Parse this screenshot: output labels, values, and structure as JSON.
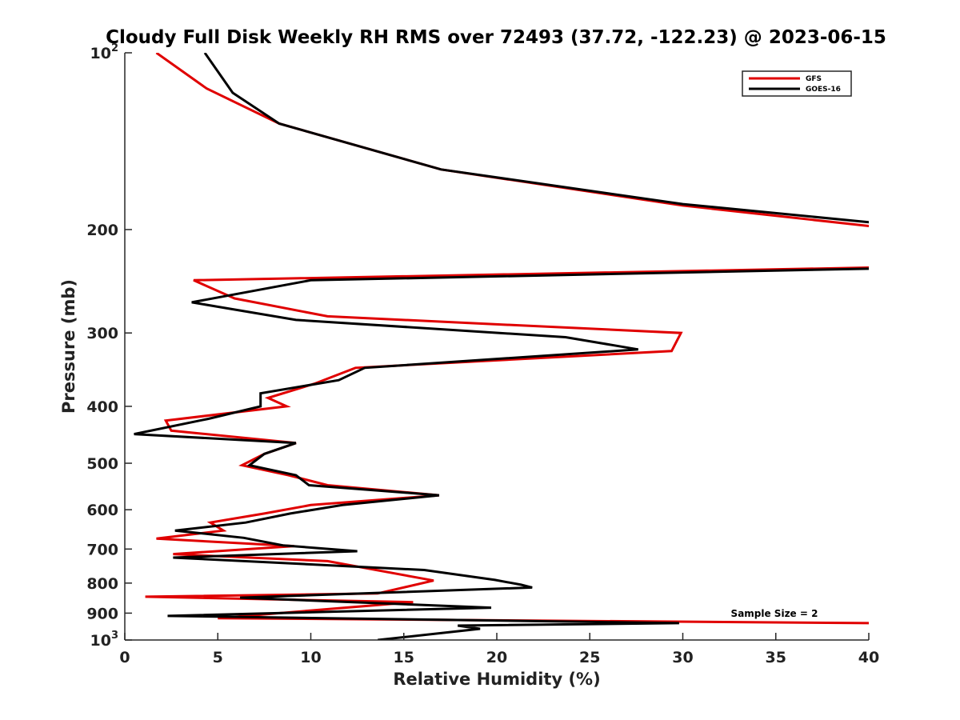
{
  "chart_data": {
    "type": "line",
    "title": "Cloudy Full Disk Weekly RH RMS over 72493 (37.72, -122.23) @ 2023-06-15",
    "xlabel": "Relative Humidity (%)",
    "ylabel": "Pressure (mb)",
    "xlim": [
      0,
      40
    ],
    "ylim": [
      1000,
      100
    ],
    "yscale": "log",
    "y_reversed": true,
    "grid": false,
    "legend_position": "top-right",
    "x_ticks": [
      0,
      5,
      10,
      15,
      20,
      25,
      30,
      35,
      40
    ],
    "y_ticks": [
      {
        "value": 100,
        "base": "10",
        "exp": "2"
      },
      {
        "value": 200,
        "label": "200"
      },
      {
        "value": 300,
        "label": "300"
      },
      {
        "value": 400,
        "label": "400"
      },
      {
        "value": 500,
        "label": "500"
      },
      {
        "value": 600,
        "label": "600"
      },
      {
        "value": 700,
        "label": "700"
      },
      {
        "value": 800,
        "label": "800"
      },
      {
        "value": 900,
        "label": "900"
      },
      {
        "value": 1000,
        "base": "10",
        "exp": "3"
      }
    ],
    "annotation": "Sample Size = 2",
    "series": [
      {
        "name": "GFS",
        "color": "#e00000",
        "points": [
          [
            1.7,
            100
          ],
          [
            4.4,
            115
          ],
          [
            8.3,
            132
          ],
          [
            17.0,
            158
          ],
          [
            30.0,
            182
          ],
          [
            40.5,
            198
          ],
          [
            40.5,
            232
          ],
          [
            3.7,
            244
          ],
          [
            5.9,
            262
          ],
          [
            10.9,
            281
          ],
          [
            29.9,
            300
          ],
          [
            29.4,
            322
          ],
          [
            12.4,
            344
          ],
          [
            10.2,
            366
          ],
          [
            7.7,
            387
          ],
          [
            8.7,
            400
          ],
          [
            2.2,
            423
          ],
          [
            2.5,
            440
          ],
          [
            9.2,
            462
          ],
          [
            7.5,
            482
          ],
          [
            6.3,
            504
          ],
          [
            8.8,
            524
          ],
          [
            10.9,
            545
          ],
          [
            16.9,
            567
          ],
          [
            10.0,
            589
          ],
          [
            7.5,
            609
          ],
          [
            4.6,
            631
          ],
          [
            5.3,
            651
          ],
          [
            1.7,
            672
          ],
          [
            9.1,
            692
          ],
          [
            2.6,
            714
          ],
          [
            10.9,
            734
          ],
          [
            16.6,
            792
          ],
          [
            13.6,
            833
          ],
          [
            1.1,
            844
          ],
          [
            15.5,
            862
          ],
          [
            5.0,
            918
          ],
          [
            40.0,
            936
          ]
        ]
      },
      {
        "name": "GOES-16",
        "color": "#000000",
        "points": [
          [
            4.3,
            100
          ],
          [
            5.8,
            117
          ],
          [
            8.3,
            132
          ],
          [
            17.0,
            158
          ],
          [
            30.0,
            181
          ],
          [
            40.5,
            195
          ],
          [
            40.5,
            233
          ],
          [
            10.0,
            244
          ],
          [
            3.6,
            266
          ],
          [
            9.2,
            285
          ],
          [
            23.7,
            305
          ],
          [
            27.6,
            320
          ],
          [
            12.9,
            344
          ],
          [
            11.5,
            361
          ],
          [
            7.3,
            380
          ],
          [
            7.3,
            400
          ],
          [
            4.5,
            420
          ],
          [
            0.5,
            446
          ],
          [
            9.2,
            462
          ],
          [
            7.5,
            482
          ],
          [
            6.7,
            504
          ],
          [
            9.2,
            524
          ],
          [
            9.9,
            545
          ],
          [
            16.9,
            567
          ],
          [
            11.7,
            589
          ],
          [
            8.9,
            609
          ],
          [
            6.5,
            631
          ],
          [
            2.7,
            651
          ],
          [
            6.4,
            670
          ],
          [
            8.5,
            690
          ],
          [
            12.5,
            706
          ],
          [
            2.6,
            724
          ],
          [
            16.1,
            760
          ],
          [
            19.9,
            790
          ],
          [
            21.3,
            805
          ],
          [
            21.9,
            814
          ],
          [
            6.2,
            847
          ],
          [
            19.7,
            881
          ],
          [
            2.3,
            910
          ],
          [
            29.8,
            936
          ],
          [
            17.9,
            945
          ],
          [
            19.1,
            957
          ],
          [
            13.6,
            1000
          ]
        ]
      }
    ]
  }
}
